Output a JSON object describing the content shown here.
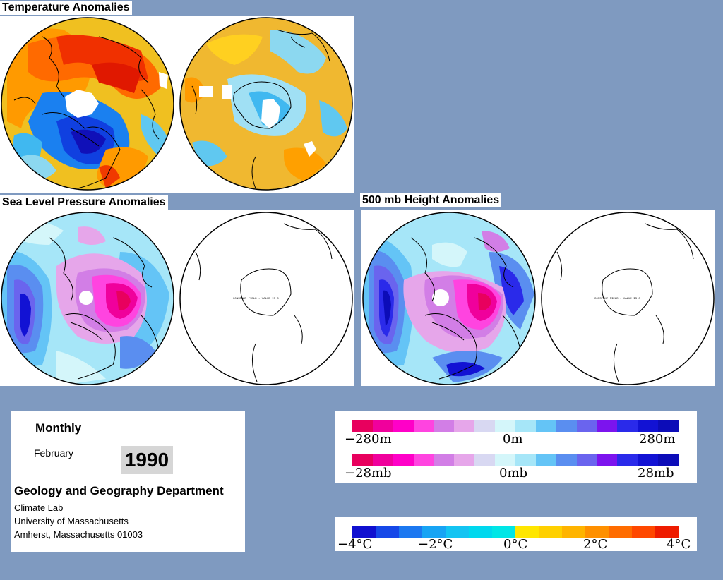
{
  "titles": {
    "temperature": "Temperature Anomalies",
    "slp": "Sea Level Pressure Anomalies",
    "height": "500 mb Height Anomalies"
  },
  "constant_field_caption": "CONSTANT FIELD - VALUE IS 0",
  "info": {
    "period": "Monthly",
    "month": "February",
    "year": "1990",
    "department": "Geology and Geography Department",
    "lab": "Climate Lab",
    "university": "University of Massachusetts",
    "address": "Amherst, Massachusetts 01003"
  },
  "pressure_legend": {
    "colors": [
      "#e8005e",
      "#f0009c",
      "#ff00c8",
      "#ff44e0",
      "#d27ee6",
      "#e6a6ea",
      "#d8d8f2",
      "#d4f6fa",
      "#a6e6f8",
      "#64c4f6",
      "#5a8ef0",
      "#6a64ee",
      "#7c14ee",
      "#2a2aea",
      "#1212d4",
      "#0c0cb8"
    ],
    "height_labels": [
      "−280m",
      "0m",
      "280m"
    ],
    "slp_labels": [
      "−28mb",
      "0mb",
      "28mb"
    ]
  },
  "temperature_legend": {
    "colors": [
      "#1010d0",
      "#1648e8",
      "#1c78f0",
      "#18a4f4",
      "#14c4f2",
      "#00d8ee",
      "#00e6e6",
      "#ffe600",
      "#ffd000",
      "#ffb400",
      "#ff9000",
      "#ff6c00",
      "#ff4800",
      "#ee1c00"
    ],
    "labels": [
      "−4°C",
      "−2°C",
      "0°C",
      "2°C",
      "4°C"
    ]
  }
}
